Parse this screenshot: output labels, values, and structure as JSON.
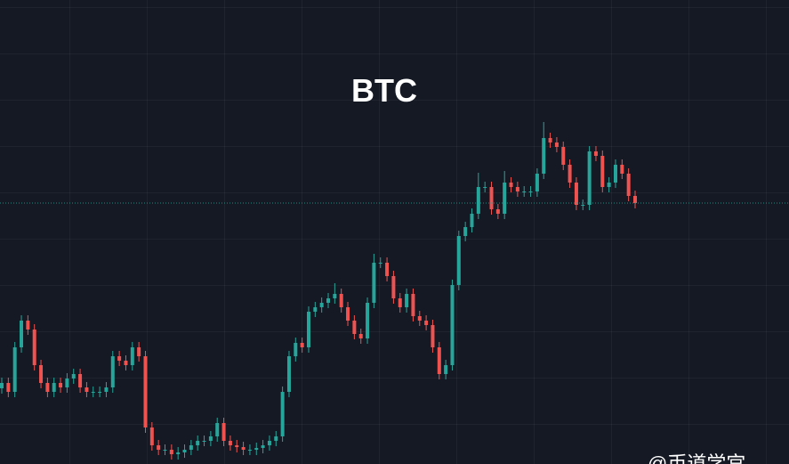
{
  "chart_data": {
    "type": "candlestick",
    "title": "BTC",
    "watermark": "@币道学宫",
    "up_color": "#26a69a",
    "down_color": "#ef5350",
    "ylim": [
      0,
      521
    ],
    "price_line": true,
    "open": [
      85,
      91,
      81,
      131,
      161,
      151,
      111,
      91,
      81,
      91,
      86,
      96,
      101,
      86,
      81,
      81,
      81,
      86,
      121,
      116,
      111,
      131,
      121,
      41,
      21,
      16,
      16,
      11,
      13,
      16,
      21,
      26,
      26,
      31,
      46,
      26,
      21,
      19,
      16,
      16,
      18,
      21,
      26,
      31,
      81,
      121,
      136,
      131,
      171,
      176,
      181,
      186,
      191,
      176,
      161,
      146,
      141,
      181,
      226,
      226,
      211,
      186,
      176,
      191,
      166,
      161,
      156,
      131,
      101,
      111,
      201,
      256,
      266,
      281,
      311,
      311,
      286,
      281,
      316,
      311,
      306,
      306,
      306,
      326,
      366,
      361,
      356,
      336,
      316,
      291,
      291,
      351,
      346,
      311,
      316,
      336,
      326,
      301
    ],
    "high": [
      97,
      97,
      137,
      167,
      167,
      157,
      117,
      97,
      97,
      97,
      102,
      107,
      107,
      92,
      87,
      87,
      92,
      127,
      127,
      122,
      137,
      137,
      127,
      47,
      27,
      22,
      22,
      19,
      22,
      27,
      32,
      32,
      37,
      52,
      52,
      32,
      27,
      25,
      22,
      24,
      27,
      32,
      37,
      87,
      127,
      142,
      142,
      177,
      182,
      187,
      192,
      203,
      197,
      182,
      167,
      152,
      187,
      236,
      232,
      232,
      217,
      192,
      197,
      197,
      172,
      167,
      162,
      137,
      117,
      207,
      262,
      272,
      287,
      327,
      317,
      317,
      292,
      329,
      322,
      317,
      312,
      312,
      332,
      384,
      372,
      367,
      362,
      342,
      322,
      297,
      357,
      357,
      352,
      322,
      342,
      342,
      332,
      307
    ],
    "low": [
      79,
      75,
      75,
      125,
      145,
      105,
      85,
      75,
      75,
      80,
      80,
      90,
      80,
      75,
      75,
      75,
      75,
      80,
      110,
      105,
      105,
      115,
      35,
      15,
      10,
      10,
      5,
      5,
      7,
      10,
      15,
      20,
      20,
      25,
      20,
      15,
      13,
      10,
      10,
      10,
      12,
      15,
      20,
      25,
      75,
      115,
      125,
      125,
      165,
      170,
      175,
      180,
      170,
      155,
      140,
      135,
      135,
      175,
      220,
      205,
      180,
      170,
      170,
      160,
      155,
      150,
      125,
      95,
      95,
      105,
      195,
      250,
      260,
      275,
      305,
      280,
      275,
      275,
      305,
      300,
      300,
      300,
      300,
      320,
      355,
      350,
      330,
      310,
      285,
      285,
      285,
      340,
      305,
      305,
      310,
      320,
      295,
      287
    ],
    "close": [
      91,
      81,
      131,
      161,
      151,
      111,
      91,
      81,
      91,
      86,
      96,
      101,
      86,
      81,
      81,
      81,
      86,
      121,
      116,
      111,
      131,
      121,
      41,
      21,
      16,
      16,
      11,
      13,
      16,
      21,
      26,
      26,
      31,
      46,
      26,
      21,
      19,
      16,
      16,
      18,
      21,
      26,
      31,
      81,
      121,
      136,
      131,
      171,
      176,
      181,
      186,
      191,
      176,
      161,
      146,
      141,
      181,
      226,
      226,
      211,
      186,
      176,
      191,
      166,
      161,
      156,
      131,
      101,
      111,
      201,
      256,
      266,
      281,
      311,
      311,
      286,
      281,
      316,
      311,
      306,
      306,
      306,
      326,
      366,
      361,
      356,
      336,
      316,
      291,
      291,
      351,
      346,
      311,
      316,
      336,
      326,
      301,
      293
    ]
  }
}
